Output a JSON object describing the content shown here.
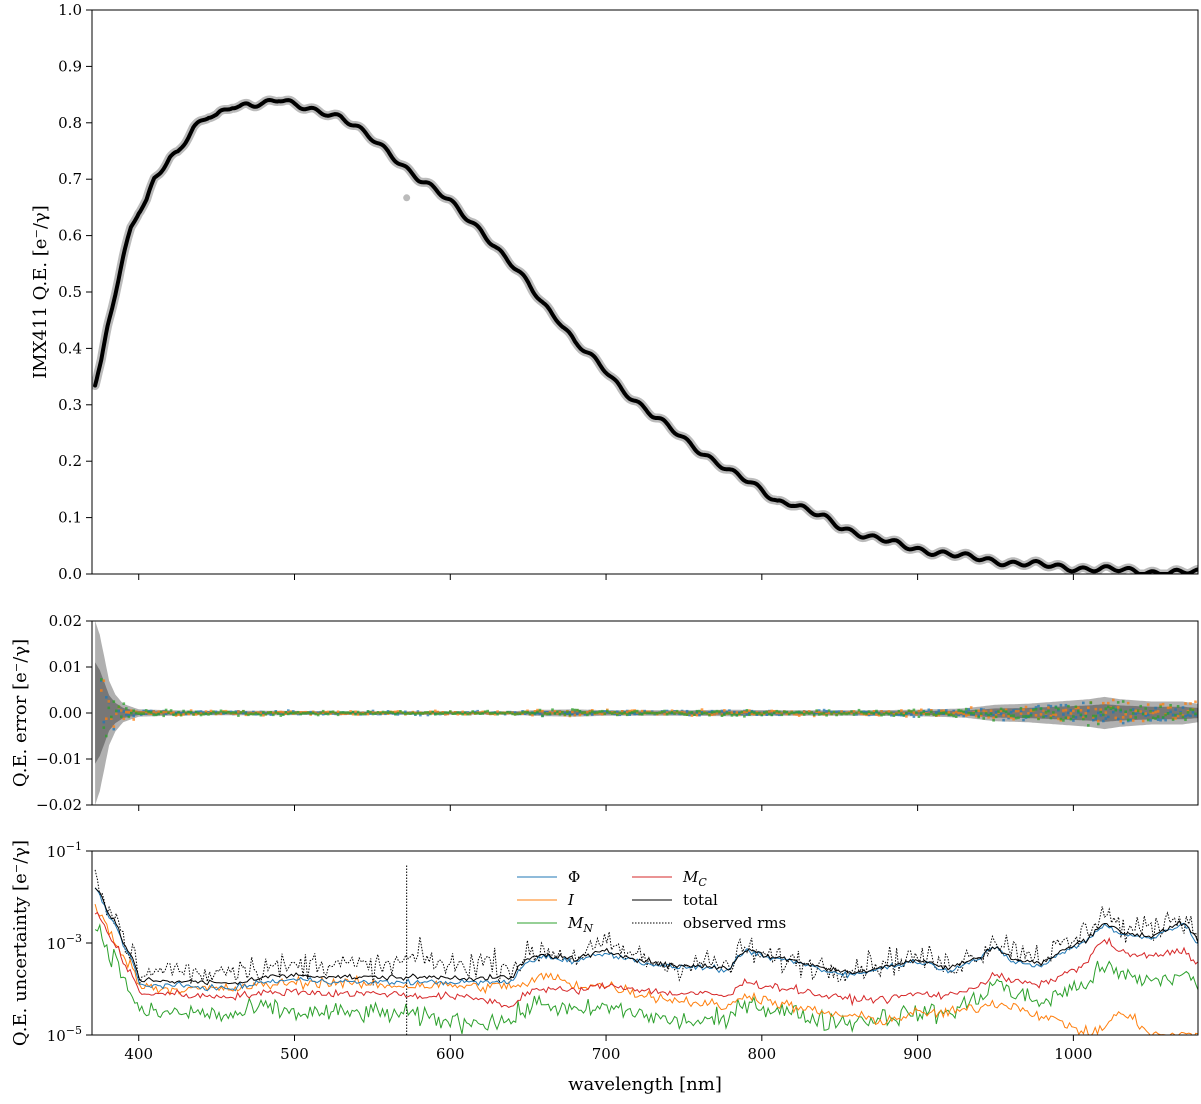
{
  "colors": {
    "phi": "#1f77b4",
    "intensity": "#ff7f0e",
    "mn": "#2ca02c",
    "mc": "#d62728",
    "total": "#000000",
    "observed_rms": "#000000",
    "qe_points": "#bbbbbb",
    "qe_band": "#777777"
  },
  "chart_data": [
    {
      "type": "line",
      "ylabel": "IMX411 Q.E. [e⁻/γ]",
      "xlim": [
        370,
        1080
      ],
      "ylim": [
        0.0,
        1.0
      ],
      "yticks": [
        "0.0",
        "0.1",
        "0.2",
        "0.3",
        "0.4",
        "0.5",
        "0.6",
        "0.7",
        "0.8",
        "0.9",
        "1.0"
      ],
      "ytick_values": [
        0,
        0.1,
        0.2,
        0.3,
        0.4,
        0.5,
        0.6,
        0.7,
        0.8,
        0.9,
        1.0
      ],
      "series": [
        {
          "key": "qe",
          "x": [
            372,
            376,
            380,
            385,
            390,
            395,
            400,
            405,
            410,
            415,
            420,
            425,
            430,
            435,
            440,
            445,
            450,
            455,
            460,
            465,
            470,
            480,
            490,
            500,
            510,
            520,
            530,
            540,
            550,
            560,
            570,
            580,
            590,
            600,
            610,
            620,
            630,
            640,
            650,
            660,
            670,
            680,
            690,
            700,
            710,
            720,
            730,
            740,
            750,
            760,
            770,
            780,
            790,
            800,
            810,
            820,
            830,
            840,
            850,
            860,
            870,
            880,
            890,
            900,
            910,
            920,
            930,
            940,
            950,
            960,
            970,
            980,
            990,
            1000,
            1010,
            1020,
            1030,
            1040,
            1050,
            1060,
            1070,
            1080
          ],
          "y": [
            0.34,
            0.38,
            0.44,
            0.5,
            0.56,
            0.61,
            0.64,
            0.66,
            0.7,
            0.72,
            0.74,
            0.75,
            0.77,
            0.79,
            0.8,
            0.81,
            0.81,
            0.82,
            0.83,
            0.83,
            0.835,
            0.835,
            0.84,
            0.83,
            0.825,
            0.82,
            0.81,
            0.79,
            0.77,
            0.75,
            0.725,
            0.7,
            0.68,
            0.66,
            0.635,
            0.61,
            0.575,
            0.545,
            0.515,
            0.48,
            0.45,
            0.41,
            0.385,
            0.36,
            0.33,
            0.305,
            0.28,
            0.26,
            0.24,
            0.22,
            0.2,
            0.18,
            0.165,
            0.15,
            0.13,
            0.125,
            0.11,
            0.1,
            0.085,
            0.075,
            0.065,
            0.058,
            0.05,
            0.045,
            0.04,
            0.035,
            0.03,
            0.027,
            0.024,
            0.02,
            0.018,
            0.015,
            0.013,
            0.011,
            0.01,
            0.008,
            0.006,
            0.005,
            0.004,
            0.003,
            0.002,
            0.002
          ]
        }
      ],
      "outliers": [
        {
          "x": 572,
          "y": 0.667
        }
      ]
    },
    {
      "type": "scatter",
      "ylabel": "Q.E. error [e⁻/γ]",
      "xlim": [
        370,
        1080
      ],
      "ylim": [
        -0.02,
        0.02
      ],
      "yticks": [
        "−0.02",
        "−0.01",
        "0.00",
        "0.01",
        "0.02"
      ],
      "ytick_values": [
        -0.02,
        -0.01,
        0.0,
        0.01,
        0.02
      ],
      "error_envelope": {
        "x": [
          372,
          375,
          378,
          381,
          385,
          390,
          400,
          420,
          440,
          480,
          520,
          560,
          600,
          640,
          660,
          680,
          700,
          740,
          780,
          820,
          860,
          900,
          930,
          950,
          970,
          990,
          1010,
          1020,
          1030,
          1050,
          1070,
          1080
        ],
        "y": [
          0.02,
          0.017,
          0.012,
          0.007,
          0.004,
          0.002,
          0.0008,
          0.0006,
          0.0005,
          0.0005,
          0.0004,
          0.0004,
          0.0004,
          0.0004,
          0.0007,
          0.0008,
          0.0006,
          0.0006,
          0.0007,
          0.0006,
          0.0006,
          0.0007,
          0.001,
          0.0018,
          0.002,
          0.0025,
          0.003,
          0.0035,
          0.003,
          0.0025,
          0.0025,
          0.002
        ]
      }
    },
    {
      "type": "line",
      "ylabel": "Q.E. uncertainty [e⁻/γ]",
      "xlabel": "wavelength [nm]",
      "xlim": [
        370,
        1080
      ],
      "yscale": "log",
      "ylim": [
        1e-05,
        0.1
      ],
      "yticks": [
        {
          "base": "10",
          "exp": "−1",
          "value": 0.1
        },
        {
          "base": "10",
          "exp": "−3",
          "value": 0.001
        },
        {
          "base": "10",
          "exp": "−5",
          "value": 1e-05
        }
      ],
      "xticks": [
        "400",
        "500",
        "600",
        "700",
        "800",
        "900",
        "1000"
      ],
      "xtick_values": [
        400,
        500,
        600,
        700,
        800,
        900,
        1000
      ],
      "legend": {
        "placement": "top-center",
        "entries": [
          {
            "key": "phi",
            "label": "Φ",
            "style": "solid"
          },
          {
            "key": "intensity",
            "label": "I",
            "style": "solid"
          },
          {
            "key": "mn",
            "label": "M",
            "sub": "N",
            "style": "solid"
          },
          {
            "key": "mc",
            "label": "M",
            "sub": "C",
            "style": "solid"
          },
          {
            "key": "total",
            "label": "total",
            "style": "solid"
          },
          {
            "key": "observed_rms",
            "label": "observed rms",
            "style": "dotted"
          }
        ]
      },
      "x": [
        372,
        380,
        390,
        400,
        420,
        440,
        460,
        480,
        500,
        520,
        540,
        560,
        580,
        600,
        620,
        640,
        650,
        660,
        680,
        700,
        720,
        740,
        760,
        780,
        790,
        800,
        820,
        840,
        860,
        880,
        900,
        920,
        940,
        950,
        960,
        980,
        1000,
        1010,
        1020,
        1030,
        1050,
        1070,
        1080
      ],
      "series": [
        {
          "key": "phi",
          "values": [
            0.015,
            0.004,
            0.0008,
            0.00012,
            0.00012,
            0.00011,
            0.0001,
            0.00014,
            0.00016,
            0.00015,
            0.00014,
            0.00014,
            0.00014,
            0.00014,
            0.00014,
            0.00014,
            0.0004,
            0.0005,
            0.0004,
            0.0006,
            0.0004,
            0.0003,
            0.0003,
            0.00025,
            0.0007,
            0.0005,
            0.0004,
            0.00025,
            0.0002,
            0.0003,
            0.0004,
            0.00025,
            0.00045,
            0.0008,
            0.0004,
            0.0003,
            0.0008,
            0.0012,
            0.0025,
            0.0015,
            0.0013,
            0.0025,
            0.0009
          ]
        },
        {
          "key": "intensity",
          "values": [
            0.006,
            0.0018,
            0.0005,
            0.00012,
            0.0001,
            0.0001,
            0.0001,
            0.00012,
            0.00014,
            0.00014,
            0.00013,
            0.00012,
            0.00012,
            0.00012,
            0.00011,
            0.00012,
            0.00012,
            0.0002,
            0.00012,
            0.00012,
            8e-05,
            6e-05,
            5e-05,
            4e-05,
            8e-05,
            6e-05,
            4e-05,
            3e-05,
            2.5e-05,
            2e-05,
            3e-05,
            3e-05,
            4e-05,
            5e-05,
            4.5e-05,
            2.5e-05,
            1.5e-05,
            1e-05,
            1.5e-05,
            3e-05,
            1e-05,
            1e-05,
            1e-05
          ]
        },
        {
          "key": "mn",
          "values": [
            0.0025,
            0.0007,
            0.00015,
            3e-05,
            3e-05,
            3e-05,
            2.5e-05,
            4e-05,
            3e-05,
            3e-05,
            3e-05,
            3e-05,
            2.5e-05,
            2e-05,
            2e-05,
            2e-05,
            4e-05,
            5e-05,
            3e-05,
            4e-05,
            3e-05,
            2e-05,
            2e-05,
            2e-05,
            6e-05,
            4e-05,
            3e-05,
            2e-05,
            2e-05,
            2.5e-05,
            3e-05,
            3e-05,
            6e-05,
            0.00015,
            8e-05,
            5e-05,
            0.0001,
            0.00015,
            0.0003,
            0.0002,
            0.00015,
            0.0002,
            0.00012
          ]
        },
        {
          "key": "mc",
          "values": [
            0.005,
            0.0015,
            0.00035,
            8e-05,
            8e-05,
            7e-05,
            7e-05,
            8e-05,
            9e-05,
            8e-05,
            8e-05,
            8e-05,
            7e-05,
            7e-05,
            6e-05,
            4e-05,
            9e-05,
            0.0001,
            9e-05,
            0.00012,
            0.0001,
            8e-05,
            8e-05,
            7e-05,
            0.00015,
            0.00012,
            0.0001,
            7e-05,
            6e-05,
            6e-05,
            8e-05,
            7e-05,
            0.00012,
            0.0002,
            0.00015,
            0.00012,
            0.00025,
            0.0004,
            0.0012,
            0.0006,
            0.0005,
            0.0007,
            0.00035
          ]
        },
        {
          "key": "total",
          "values": [
            0.016,
            0.0045,
            0.0009,
            0.00016,
            0.00015,
            0.00014,
            0.00013,
            0.00018,
            0.0002,
            0.00019,
            0.00018,
            0.00018,
            0.00018,
            0.00018,
            0.00017,
            0.00018,
            0.00045,
            0.00055,
            0.00045,
            0.00065,
            0.00045,
            0.00032,
            0.00032,
            0.00028,
            0.00075,
            0.00055,
            0.00042,
            0.00028,
            0.00022,
            0.00032,
            0.00042,
            0.00028,
            0.00048,
            0.00085,
            0.00045,
            0.00035,
            0.00085,
            0.0013,
            0.0028,
            0.0017,
            0.0014,
            0.0027,
            0.001
          ]
        },
        {
          "key": "observed_rms",
          "values": [
            0.03,
            0.006,
            0.0012,
            0.00015,
            0.0003,
            0.0002,
            0.0003,
            0.0003,
            0.0003,
            0.0004,
            0.0003,
            0.0003,
            0.0005,
            0.0003,
            0.0004,
            0.0003,
            0.0005,
            0.0007,
            0.0005,
            0.0009,
            0.0005,
            0.0003,
            0.0004,
            0.0003,
            0.0008,
            0.0005,
            0.0004,
            0.0003,
            0.0003,
            0.0004,
            0.0005,
            0.0003,
            0.0006,
            0.0012,
            0.0008,
            0.0005,
            0.001,
            0.002,
            0.005,
            0.002,
            0.002,
            0.004,
            0.001
          ]
        }
      ],
      "spikes": [
        {
          "x": 572,
          "y": 0.05
        }
      ]
    }
  ]
}
